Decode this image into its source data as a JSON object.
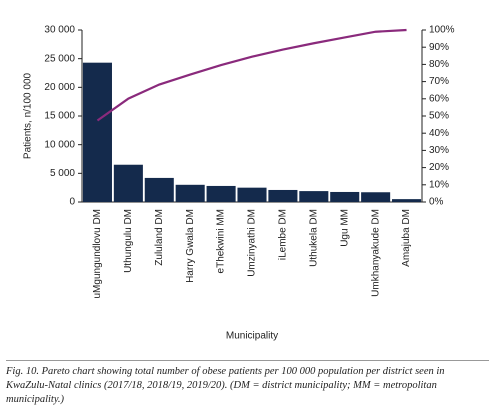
{
  "chart_data": {
    "type": "pareto",
    "categories": [
      "uMgungundlovu DM",
      "Uthungulu DM",
      "Zululand DM",
      "Harry Gwala DM",
      "eThekwini MM",
      "Umzinyathi DM",
      "iLembe DM",
      "Uthukela DM",
      "Ugu MM",
      "Umkhanyakude DM",
      "Amajuba DM"
    ],
    "series": [
      {
        "type": "bar",
        "color": "#142a4c",
        "values": [
          24300,
          6500,
          4200,
          3000,
          2800,
          2500,
          2100,
          1900,
          1750,
          1700,
          500
        ]
      },
      {
        "type": "line",
        "axis": "y2",
        "color": "#8a2a7c",
        "values": [
          47.4,
          60.1,
          68.3,
          74.1,
          79.6,
          84.5,
          88.6,
          92.3,
          95.7,
          99.0,
          100
        ]
      }
    ],
    "ylabel": "Patients, n/100 000",
    "xlabel": "Municipality",
    "ylim": [
      0,
      30000
    ],
    "yticks": [
      0,
      {
        "value": 5000,
        "label": "5 000"
      },
      {
        "value": 10000,
        "label": "10 000"
      },
      {
        "value": 15000,
        "label": "15 000"
      },
      {
        "value": 20000,
        "label": "20 000"
      },
      {
        "value": 25000,
        "label": "25 000"
      },
      {
        "value": 30000,
        "label": "30 000"
      }
    ],
    "y2lim": [
      0,
      100
    ],
    "y2ticks": [
      {
        "value": 0,
        "label": "0%"
      },
      {
        "value": 10,
        "label": "10%"
      },
      {
        "value": 20,
        "label": "20%"
      },
      {
        "value": 30,
        "label": "30%"
      },
      {
        "value": 40,
        "label": "40%"
      },
      {
        "value": 50,
        "label": "50%"
      },
      {
        "value": 60,
        "label": "60%"
      },
      {
        "value": 70,
        "label": "70%"
      },
      {
        "value": 80,
        "label": "80%"
      },
      {
        "value": 90,
        "label": "90%"
      },
      {
        "value": 100,
        "label": "100%"
      }
    ],
    "caption": "Fig. 10. Pareto chart showing total number of obese patients per 100 000 population per district seen in KwaZulu-Natal clinics (2017/18, 2018/19, 2019/20). (DM = district municipality; MM = metropolitan municipality.)"
  }
}
